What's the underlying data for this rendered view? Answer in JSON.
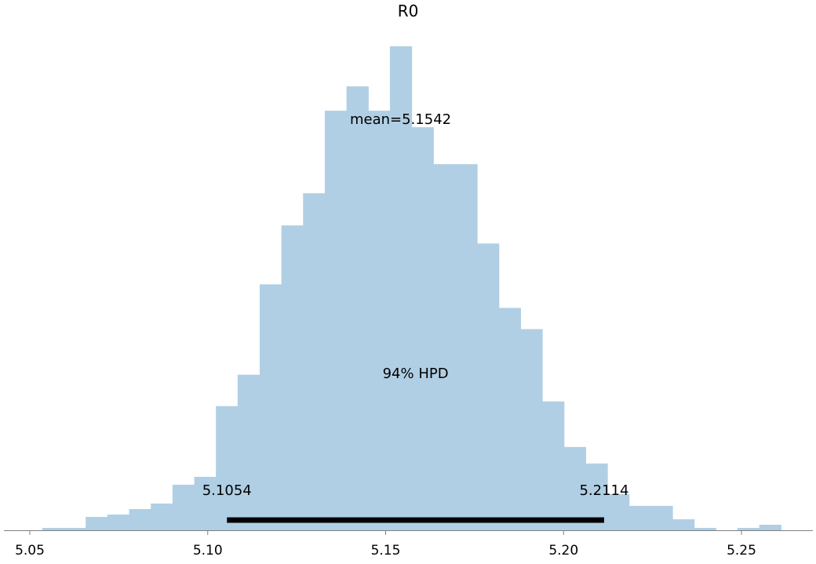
{
  "chart_data": {
    "type": "bar",
    "title": "R0",
    "xlabel": "",
    "ylabel": "",
    "bin_width": 0.006111,
    "bins": [
      {
        "left": 5.0535,
        "right": 5.0657,
        "count": 3
      },
      {
        "left": 5.0657,
        "right": 5.0718,
        "count": 17
      },
      {
        "left": 5.0718,
        "right": 5.0779,
        "count": 20
      },
      {
        "left": 5.0779,
        "right": 5.084,
        "count": 27
      },
      {
        "left": 5.084,
        "right": 5.0901,
        "count": 34
      },
      {
        "left": 5.0901,
        "right": 5.0962,
        "count": 58
      },
      {
        "left": 5.0962,
        "right": 5.1023,
        "count": 68
      },
      {
        "left": 5.1023,
        "right": 5.1084,
        "count": 158
      },
      {
        "left": 5.1084,
        "right": 5.1146,
        "count": 198
      },
      {
        "left": 5.1146,
        "right": 5.1207,
        "count": 313
      },
      {
        "left": 5.1207,
        "right": 5.1268,
        "count": 388
      },
      {
        "left": 5.1268,
        "right": 5.1329,
        "count": 429
      },
      {
        "left": 5.1329,
        "right": 5.139,
        "count": 534
      },
      {
        "left": 5.139,
        "right": 5.1451,
        "count": 565
      },
      {
        "left": 5.1451,
        "right": 5.1512,
        "count": 534
      },
      {
        "left": 5.1512,
        "right": 5.1573,
        "count": 616
      },
      {
        "left": 5.1573,
        "right": 5.1634,
        "count": 513
      },
      {
        "left": 5.1634,
        "right": 5.1757,
        "count": 466
      },
      {
        "left": 5.1757,
        "right": 5.1818,
        "count": 365
      },
      {
        "left": 5.1818,
        "right": 5.1879,
        "count": 283
      },
      {
        "left": 5.1879,
        "right": 5.194,
        "count": 256
      },
      {
        "left": 5.194,
        "right": 5.2001,
        "count": 164
      },
      {
        "left": 5.2001,
        "right": 5.2062,
        "count": 106
      },
      {
        "left": 5.2062,
        "right": 5.2123,
        "count": 85
      },
      {
        "left": 5.2123,
        "right": 5.2184,
        "count": 46
      },
      {
        "left": 5.2184,
        "right": 5.2306,
        "count": 31
      },
      {
        "left": 5.2306,
        "right": 5.2367,
        "count": 14
      },
      {
        "left": 5.2367,
        "right": 5.2428,
        "count": 3
      },
      {
        "left": 5.2489,
        "right": 5.255,
        "count": 3
      },
      {
        "left": 5.255,
        "right": 5.2611,
        "count": 7
      }
    ],
    "mean": 5.1542,
    "mean_label": "mean=5.1542",
    "hpd": {
      "low": 5.1054,
      "high": 5.2114,
      "low_label": "5.1054",
      "high_label": "5.2114",
      "label": "94% HPD"
    },
    "xticks": [
      {
        "value": 5.05,
        "label": "5.05"
      },
      {
        "value": 5.1,
        "label": "5.10"
      },
      {
        "value": 5.15,
        "label": "5.15"
      },
      {
        "value": 5.2,
        "label": "5.20"
      },
      {
        "value": 5.25,
        "label": "5.25"
      }
    ],
    "xlim": [
      5.042,
      5.269
    ],
    "ylim": [
      0,
      640
    ],
    "colors": {
      "bar": "#b0cfe4",
      "hpd_line": "#000000",
      "axis": "#808080"
    },
    "grid": false,
    "legend": "none"
  }
}
